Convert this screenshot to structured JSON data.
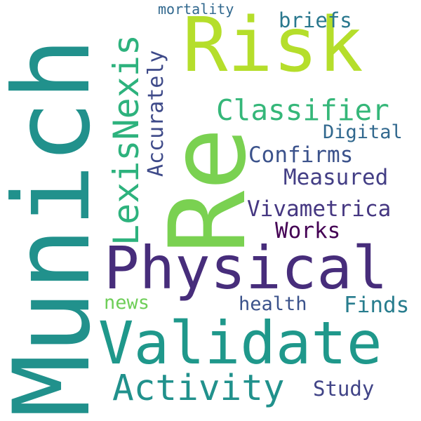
{
  "words": [
    {
      "id": "munich",
      "text": "Munich",
      "color": "#21918c"
    },
    {
      "id": "re",
      "text": "Re",
      "color": "#7ad151"
    },
    {
      "id": "risk",
      "text": "Risk",
      "color": "#b5de2b"
    },
    {
      "id": "physical",
      "text": "Physical",
      "color": "#472d7b"
    },
    {
      "id": "validate",
      "text": "Validate",
      "color": "#1f988b"
    },
    {
      "id": "activity",
      "text": "Activity",
      "color": "#21918c"
    },
    {
      "id": "lexisnexis",
      "text": "LexisNexis",
      "color": "#2db27d"
    },
    {
      "id": "accurately",
      "text": "Accurately",
      "color": "#3e4a89"
    },
    {
      "id": "classifier",
      "text": "Classifier",
      "color": "#35b779"
    },
    {
      "id": "confirms",
      "text": "Confirms",
      "color": "#3b528b"
    },
    {
      "id": "measured",
      "text": "Measured",
      "color": "#433e85"
    },
    {
      "id": "vivametrica",
      "text": "Vivametrica",
      "color": "#453781"
    },
    {
      "id": "works",
      "text": "Works",
      "color": "#440154"
    },
    {
      "id": "digital",
      "text": "Digital",
      "color": "#31688e"
    },
    {
      "id": "briefs",
      "text": "briefs",
      "color": "#2a788e"
    },
    {
      "id": "mortality",
      "text": "mortality",
      "color": "#31688e"
    },
    {
      "id": "news",
      "text": "news",
      "color": "#6ece58"
    },
    {
      "id": "health",
      "text": "health",
      "color": "#3b528b"
    },
    {
      "id": "finds",
      "text": "Finds",
      "color": "#287d8e"
    },
    {
      "id": "study",
      "text": "Study",
      "color": "#414487"
    }
  ]
}
